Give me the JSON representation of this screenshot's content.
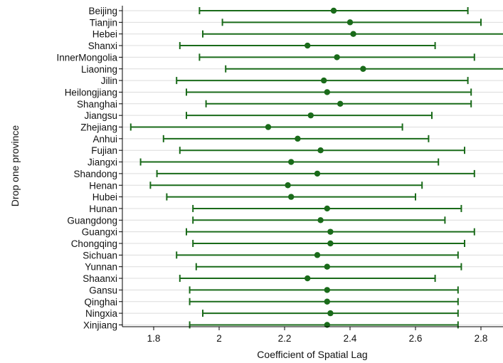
{
  "chart_data": {
    "type": "errorbar",
    "orientation": "horizontal",
    "xlabel": "Coefficient of Spatial Lag",
    "ylabel": "Drop one province",
    "xlim": [
      1.7,
      2.87
    ],
    "xticks": [
      1.8,
      2,
      2.2,
      2.4,
      2.6,
      2.8
    ],
    "grid": true,
    "colors": {
      "series": "#1a6b1a",
      "grid": "#dcdcdc",
      "axis": "#000000"
    },
    "categories": [
      "Beijing",
      "Tianjin",
      "Hebei",
      "Shanxi",
      "InnerMongolia",
      "Liaoning",
      "Jilin",
      "Heilongjiang",
      "Shanghai",
      "Jiangsu",
      "Zhejiang",
      "Anhui",
      "Fujian",
      "Jiangxi",
      "Shandong",
      "Henan",
      "Hubei",
      "Hunan",
      "Guangdong",
      "Guangxi",
      "Chongqing",
      "Sichuan",
      "Yunnan",
      "Shaanxi",
      "Gansu",
      "Qinghai",
      "Ningxia",
      "Xinjiang"
    ],
    "estimate": [
      2.35,
      2.4,
      2.41,
      2.27,
      2.36,
      2.44,
      2.32,
      2.33,
      2.37,
      2.28,
      2.15,
      2.24,
      2.31,
      2.22,
      2.3,
      2.21,
      2.22,
      2.33,
      2.31,
      2.34,
      2.34,
      2.3,
      2.33,
      2.27,
      2.33,
      2.33,
      2.34,
      2.33
    ],
    "lower": [
      1.94,
      2.01,
      1.95,
      1.88,
      1.94,
      2.02,
      1.87,
      1.9,
      1.96,
      1.9,
      1.73,
      1.83,
      1.88,
      1.76,
      1.81,
      1.79,
      1.84,
      1.92,
      1.92,
      1.9,
      1.92,
      1.87,
      1.93,
      1.88,
      1.91,
      1.91,
      1.95,
      1.91
    ],
    "upper": [
      2.76,
      2.8,
      2.87,
      2.66,
      2.78,
      2.87,
      2.76,
      2.77,
      2.77,
      2.65,
      2.56,
      2.64,
      2.75,
      2.67,
      2.78,
      2.62,
      2.6,
      2.74,
      2.69,
      2.78,
      2.75,
      2.73,
      2.74,
      2.66,
      2.73,
      2.73,
      2.73,
      2.73
    ]
  }
}
